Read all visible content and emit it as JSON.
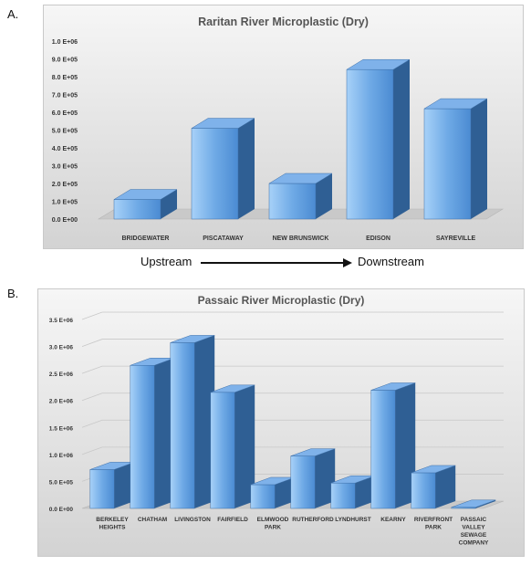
{
  "panel_a_label": "A.",
  "panel_b_label": "B.",
  "flow": {
    "upstream": "Upstream",
    "downstream": "Downstream"
  },
  "colors": {
    "bar_front": "#5a9ae0",
    "bar_side": "#2f5f94",
    "bar_top": "#7fb2ea",
    "grid": "#c8c8c8",
    "text": "#444444",
    "title": "#555555"
  },
  "chart_data": [
    {
      "type": "bar",
      "title": "Raritan River Microplastic (Dry)",
      "categories": [
        "BRIDGEWATER",
        "PISCATAWAY",
        "NEW BRUNSWICK",
        "EDISON",
        "SAYREVILLE"
      ],
      "values": [
        110000,
        510000,
        200000,
        840000,
        620000
      ],
      "ylim": [
        0,
        1000000
      ],
      "yticks": [
        "0.0 E+00",
        "1.0 E+05",
        "2.0 E+05",
        "3.0 E+05",
        "4.0 E+05",
        "5.0 E+05",
        "6.0 E+05",
        "7.0 E+05",
        "8.0 E+05",
        "9.0 E+05",
        "1.0 E+06"
      ],
      "xlabel": "",
      "ylabel": "",
      "grid": false,
      "style": "3d"
    },
    {
      "type": "bar",
      "title": "Passaic River Microplastic (Dry)",
      "categories": [
        "BERKELEY HEIGHTS",
        "CHATHAM",
        "LIVINGSTON",
        "FAIRFIELD",
        "ELMWOOD PARK",
        "RUTHERFORD",
        "LYNDHURST",
        "KEARNY",
        "RIVERFRONT PARK",
        "PASSAIC VALLEY SEWAGE COMPANY"
      ],
      "values": [
        720000,
        2650000,
        3070000,
        2150000,
        440000,
        970000,
        470000,
        2190000,
        660000,
        20000
      ],
      "ylim": [
        0,
        3500000
      ],
      "yticks": [
        "0.0 E+00",
        "5.0 E+05",
        "1.0 E+06",
        "1.5 E+06",
        "2.0 E+06",
        "2.5 E+06",
        "3.0 E+06",
        "3.5 E+06"
      ],
      "xlabel": "",
      "ylabel": "",
      "grid": true,
      "style": "3d"
    }
  ]
}
